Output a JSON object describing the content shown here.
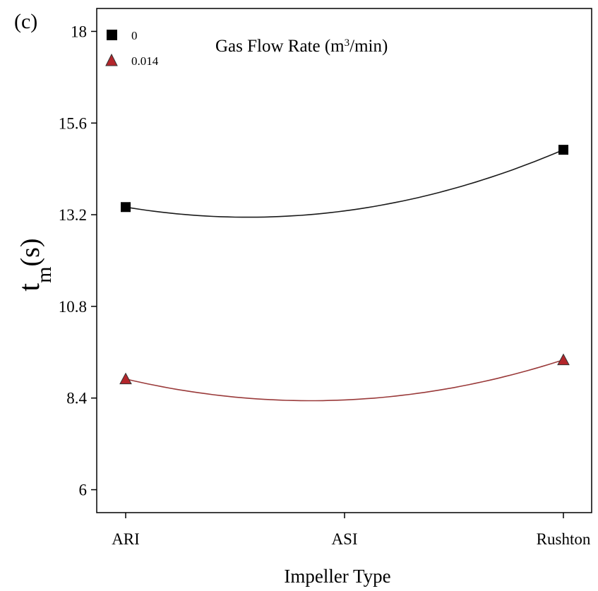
{
  "panel_label": "(c)",
  "chart_data": {
    "type": "line",
    "categories": [
      "ARI",
      "ASI",
      "Rushton"
    ],
    "xlabel": "Impeller Type",
    "ylabel_main": "t",
    "ylabel_sub": "m",
    "ylabel_unit": "(s)",
    "ylim": [
      5.4,
      18.6
    ],
    "yticks": [
      6,
      8.4,
      10.8,
      13.2,
      15.6,
      18
    ],
    "ytick_labels": [
      "6",
      "8.4",
      "10.8",
      "13.2",
      "15.6",
      "18"
    ],
    "grid": false,
    "legend": {
      "title_pre": "Gas Flow Rate (m",
      "title_sup": "3",
      "title_post": "/min)",
      "placement": "top-left"
    },
    "series": [
      {
        "name": "0",
        "marker": "square",
        "color": "#000000",
        "line_color": "#1a1a1a",
        "points": [
          {
            "x": "ARI",
            "y": 13.4
          },
          {
            "x": "Rushton",
            "y": 14.9
          }
        ],
        "fit_mid": 13.3
      },
      {
        "name": "0.014",
        "marker": "triangle",
        "color": "#b3262b",
        "line_color": "#9a3a3a",
        "points": [
          {
            "x": "ARI",
            "y": 8.9
          },
          {
            "x": "Rushton",
            "y": 9.4
          }
        ],
        "fit_mid": 8.35
      }
    ]
  }
}
